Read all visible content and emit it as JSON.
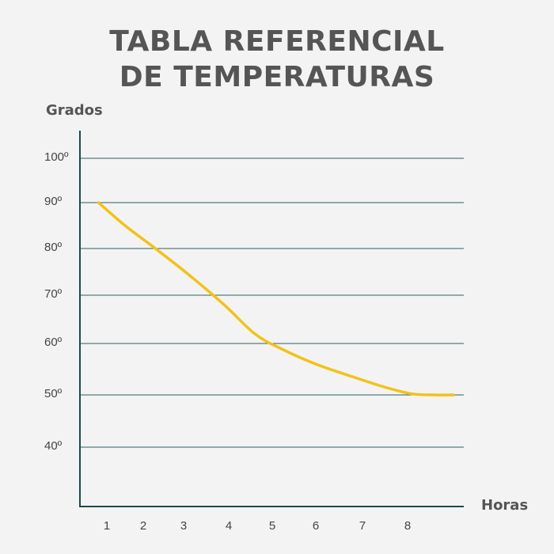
{
  "title_lines": [
    "TABLA REFERENCIAL",
    "DE TEMPERATURAS"
  ],
  "colors": {
    "background": "#f3f3f3",
    "line": "#f2c218",
    "axis": "#1b4a4a",
    "grid": "#2f5f5f",
    "text": "#555555"
  },
  "chart_data": {
    "type": "line",
    "title": "TABLA REFERENCIAL DE TEMPERATURAS",
    "ylabel": "Grados",
    "xlabel": "Horas",
    "x_ticks": [
      "1",
      "2",
      "3",
      "4",
      "5",
      "6",
      "7",
      "8"
    ],
    "y_ticks": [
      {
        "value": 100,
        "label": "100º"
      },
      {
        "value": 90,
        "label": "90º"
      },
      {
        "value": 80,
        "label": "80º"
      },
      {
        "value": 70,
        "label": "70º"
      },
      {
        "value": 60,
        "label": "60º"
      },
      {
        "value": 50,
        "label": "50º"
      },
      {
        "value": 40,
        "label": "40º"
      }
    ],
    "grid": true,
    "series": [
      {
        "x": [
          0.7,
          1.5,
          2.3,
          3.1,
          3.9,
          4.6,
          5.2,
          6.0,
          6.8,
          7.5,
          8.1,
          8.6,
          9.0
        ],
        "y": [
          90,
          85,
          80,
          74.5,
          68,
          62,
          59,
          56,
          53.5,
          51.5,
          50.2,
          50,
          50
        ]
      }
    ]
  }
}
